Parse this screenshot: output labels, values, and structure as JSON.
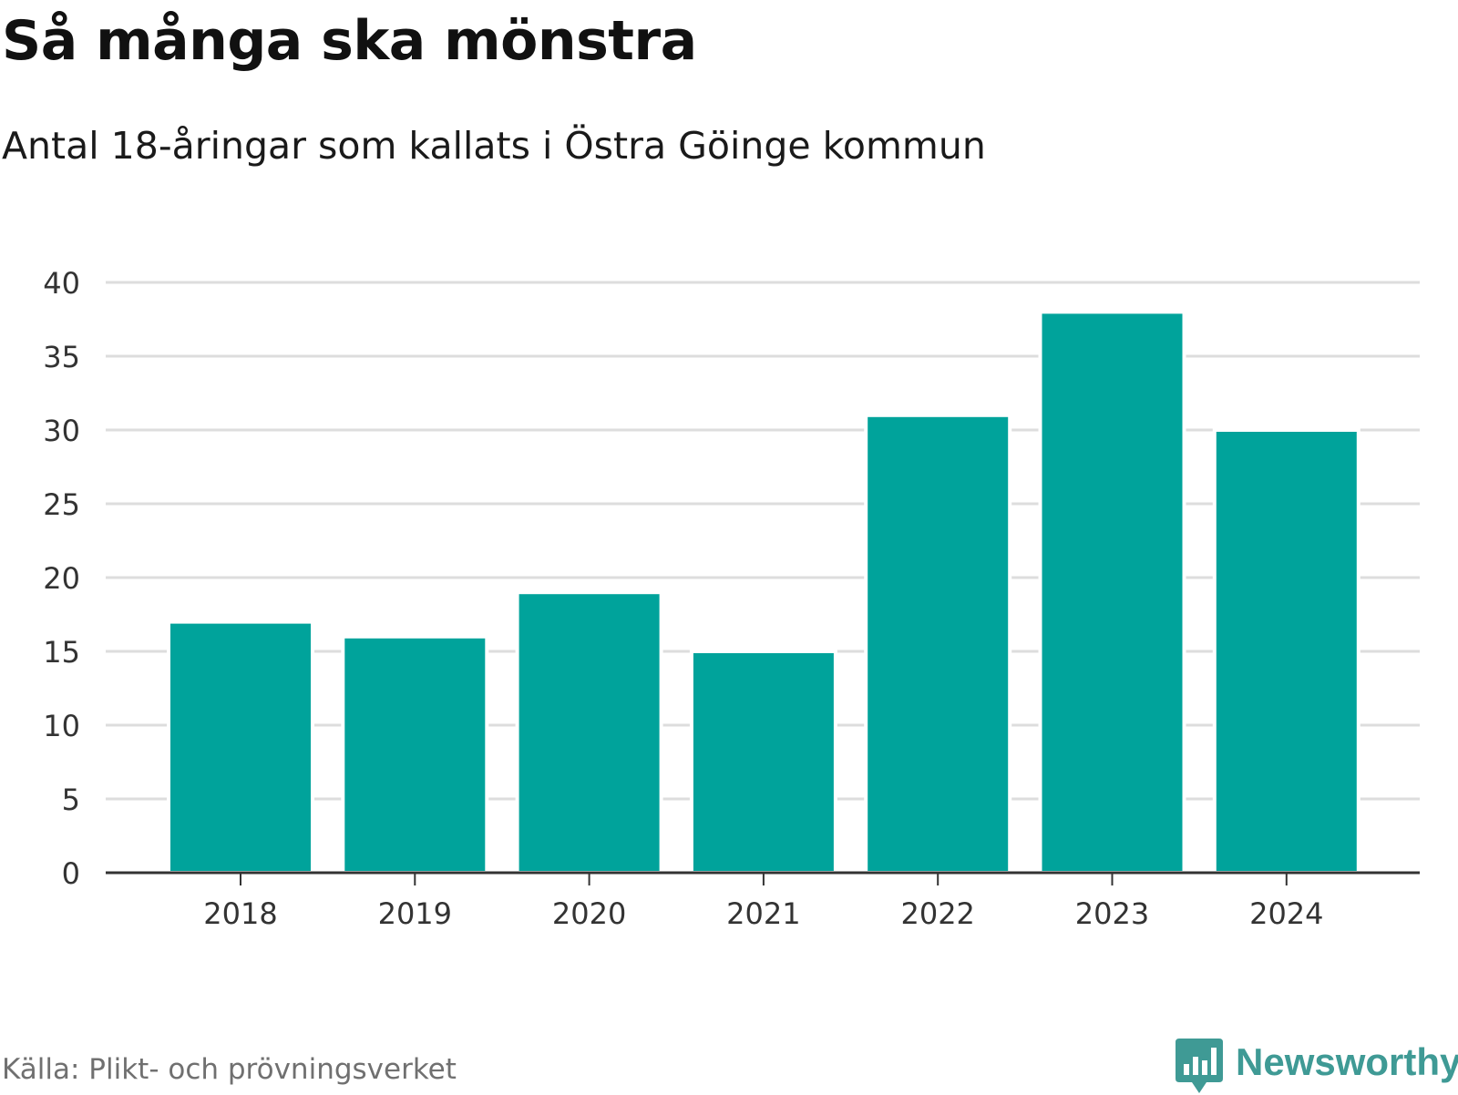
{
  "title": "Så många ska mönstra",
  "subtitle": "Antal 18-åringar som kallats i Östra Göinge kommun",
  "source": "Källa: Plikt- och prövningsverket",
  "brand": {
    "name": "Newsworthy",
    "color": "#3f9a95"
  },
  "colors": {
    "bar": "#00a39b",
    "grid": "#dddddd",
    "axis": "#333333"
  },
  "chart_data": {
    "type": "bar",
    "categories": [
      "2018",
      "2019",
      "2020",
      "2021",
      "2022",
      "2023",
      "2024"
    ],
    "values": [
      17,
      16,
      19,
      15,
      31,
      38,
      30
    ],
    "title": "Så många ska mönstra",
    "xlabel": "",
    "ylabel": "",
    "ylim": [
      0,
      40
    ],
    "yticks": [
      0,
      5,
      10,
      15,
      20,
      25,
      30,
      35,
      40
    ],
    "grid": true,
    "legend": "none"
  }
}
